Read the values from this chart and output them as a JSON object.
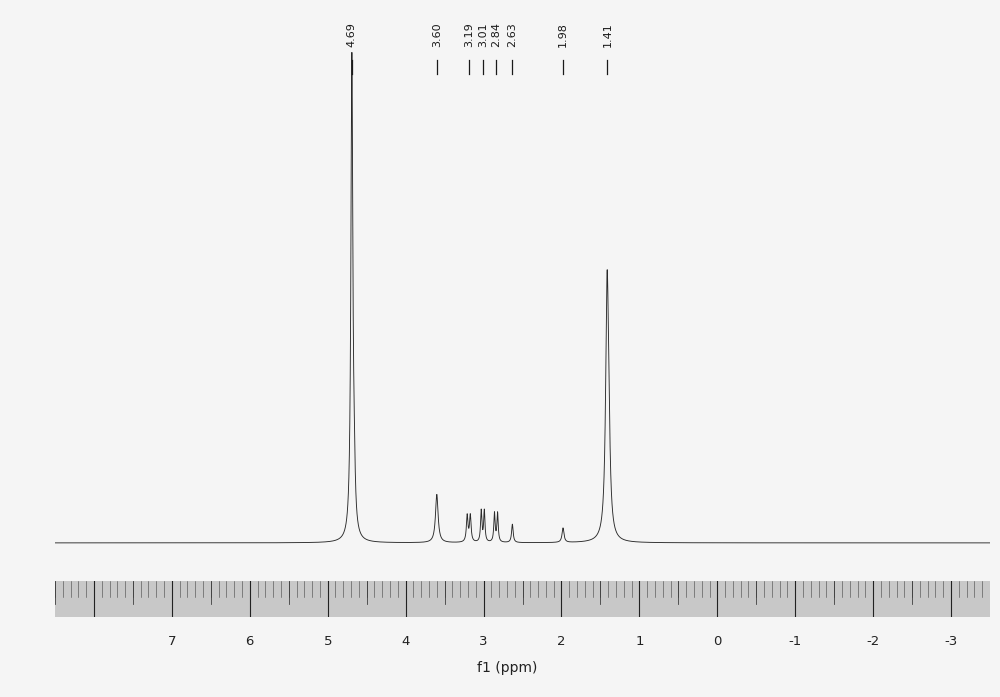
{
  "title": "",
  "xlabel": "f1 (ppm)",
  "xlim": [
    8.5,
    -3.5
  ],
  "ylim": [
    -0.03,
    1.05
  ],
  "xticks": [
    7,
    6,
    5,
    4,
    3,
    2,
    1,
    0,
    -1,
    -2,
    -3
  ],
  "background_color": "#f5f5f5",
  "spectrum_color": "#2a2a2a",
  "peak_labels": [
    "4.69",
    "3.60",
    "3.19",
    "3.01",
    "2.84",
    "2.63",
    "1.98",
    "1.41"
  ],
  "peak_positions": [
    4.69,
    3.6,
    3.19,
    3.01,
    2.84,
    2.63,
    1.98,
    1.41
  ],
  "ruler_bg": "#c8c8c8",
  "ruler_line": "#555555"
}
